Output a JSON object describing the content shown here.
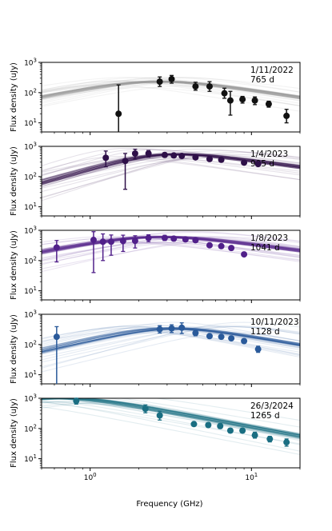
{
  "chart_data": {
    "type": "scatter",
    "xlabel": "Frequency (GHz)",
    "ylabel": "Flux density (uJy)",
    "x_scale": "log",
    "y_scale": "log",
    "xlim": [
      0.5,
      20
    ],
    "ylim": [
      5,
      1000
    ],
    "x_ticks": [
      {
        "value": 1,
        "base": "10",
        "exp": "0"
      },
      {
        "value": 10,
        "base": "10",
        "exp": "1"
      }
    ],
    "y_ticks": [
      {
        "value": 10,
        "base": "10",
        "exp": "1"
      },
      {
        "value": 100,
        "base": "10",
        "exp": "2"
      },
      {
        "value": 1000,
        "base": "10",
        "exp": "3"
      }
    ],
    "panels": [
      {
        "date": "1/11/2022",
        "age": "765 d",
        "color": "#111111",
        "model": {
          "peak_x": 2.5,
          "peak_y": 230,
          "alpha_thick": 1.0,
          "alpha_thin": -0.8
        },
        "points": [
          {
            "x": 1.5,
            "y": 20,
            "lo": 0.0,
            "hi": 180
          },
          {
            "x": 2.7,
            "y": 230,
            "lo": 160,
            "hi": 330
          },
          {
            "x": 3.2,
            "y": 280,
            "lo": 205,
            "hi": 370
          },
          {
            "x": 4.5,
            "y": 160,
            "lo": 120,
            "hi": 220
          },
          {
            "x": 5.5,
            "y": 160,
            "lo": 110,
            "hi": 230
          },
          {
            "x": 6.8,
            "y": 95,
            "lo": 65,
            "hi": 140
          },
          {
            "x": 7.4,
            "y": 55,
            "lo": 18,
            "hi": 110
          },
          {
            "x": 8.8,
            "y": 60,
            "lo": 45,
            "hi": 75
          },
          {
            "x": 10.5,
            "y": 55,
            "lo": 40,
            "hi": 72
          },
          {
            "x": 12.8,
            "y": 42,
            "lo": 33,
            "hi": 52
          },
          {
            "x": 16.5,
            "y": 17,
            "lo": 10,
            "hi": 28
          }
        ]
      },
      {
        "date": "1/4/2023",
        "age": "905 d",
        "color": "#2e0f48",
        "model": {
          "peak_x": 2.8,
          "peak_y": 520,
          "alpha_thick": 1.5,
          "alpha_thin": -0.7
        },
        "points": [
          {
            "x": 1.25,
            "y": 420,
            "lo": 210,
            "hi": 700
          },
          {
            "x": 1.65,
            "y": 330,
            "lo": 38,
            "hi": 580
          },
          {
            "x": 1.9,
            "y": 580,
            "lo": 380,
            "hi": 800
          },
          {
            "x": 2.3,
            "y": 580,
            "lo": 440,
            "hi": 730
          },
          {
            "x": 2.9,
            "y": 520,
            "lo": 440,
            "hi": 610
          },
          {
            "x": 3.3,
            "y": 500,
            "lo": 430,
            "hi": 580
          },
          {
            "x": 3.7,
            "y": 480,
            "lo": 420,
            "hi": 550
          },
          {
            "x": 4.5,
            "y": 430,
            "lo": 400,
            "hi": 470
          },
          {
            "x": 5.5,
            "y": 380,
            "lo": 350,
            "hi": 410
          },
          {
            "x": 6.5,
            "y": 360,
            "lo": 330,
            "hi": 390
          },
          {
            "x": 9.0,
            "y": 290,
            "lo": 270,
            "hi": 310
          },
          {
            "x": 11.0,
            "y": 260,
            "lo": 240,
            "hi": 280
          }
        ]
      },
      {
        "date": "1/8/2023",
        "age": "1041 d",
        "color": "#51208a",
        "model": {
          "peak_x": 2.4,
          "peak_y": 600,
          "alpha_thick": 1.0,
          "alpha_thin": -0.7
        },
        "points": [
          {
            "x": 0.62,
            "y": 270,
            "lo": 90,
            "hi": 460
          },
          {
            "x": 1.05,
            "y": 480,
            "lo": 40,
            "hi": 900
          },
          {
            "x": 1.2,
            "y": 420,
            "lo": 100,
            "hi": 760
          },
          {
            "x": 1.35,
            "y": 420,
            "lo": 150,
            "hi": 700
          },
          {
            "x": 1.6,
            "y": 440,
            "lo": 200,
            "hi": 690
          },
          {
            "x": 1.9,
            "y": 450,
            "lo": 260,
            "hi": 660
          },
          {
            "x": 2.3,
            "y": 560,
            "lo": 420,
            "hi": 710
          },
          {
            "x": 2.9,
            "y": 560,
            "lo": 460,
            "hi": 680
          },
          {
            "x": 3.3,
            "y": 530,
            "lo": 450,
            "hi": 620
          },
          {
            "x": 3.9,
            "y": 500,
            "lo": 440,
            "hi": 570
          },
          {
            "x": 4.5,
            "y": 470,
            "lo": 430,
            "hi": 515
          },
          {
            "x": 5.5,
            "y": 320,
            "lo": 295,
            "hi": 350
          },
          {
            "x": 6.5,
            "y": 300,
            "lo": 275,
            "hi": 325
          },
          {
            "x": 7.5,
            "y": 260,
            "lo": 240,
            "hi": 285
          },
          {
            "x": 9.0,
            "y": 160,
            "lo": 145,
            "hi": 175
          }
        ]
      },
      {
        "date": "10/11/2023",
        "age": "1128 d",
        "color": "#2a5a9a",
        "model": {
          "peak_x": 3.0,
          "peak_y": 340,
          "alpha_thick": 1.2,
          "alpha_thin": -0.9
        },
        "points": [
          {
            "x": 0.62,
            "y": 180,
            "lo": 0.0,
            "hi": 390
          },
          {
            "x": 2.7,
            "y": 320,
            "lo": 240,
            "hi": 420
          },
          {
            "x": 3.2,
            "y": 340,
            "lo": 250,
            "hi": 450
          },
          {
            "x": 3.7,
            "y": 360,
            "lo": 230,
            "hi": 520
          },
          {
            "x": 4.5,
            "y": 240,
            "lo": 195,
            "hi": 290
          },
          {
            "x": 5.5,
            "y": 190,
            "lo": 170,
            "hi": 215
          },
          {
            "x": 6.5,
            "y": 180,
            "lo": 160,
            "hi": 200
          },
          {
            "x": 7.5,
            "y": 160,
            "lo": 145,
            "hi": 180
          },
          {
            "x": 9.0,
            "y": 130,
            "lo": 115,
            "hi": 145
          },
          {
            "x": 11.0,
            "y": 70,
            "lo": 55,
            "hi": 88
          }
        ]
      },
      {
        "date": "26/3/2024",
        "age": "1265 d",
        "color": "#1a6e82",
        "model": {
          "peak_x": 0.7,
          "peak_y": 1000,
          "alpha_thick": 0.8,
          "alpha_thin": -1.0
        },
        "points": [
          {
            "x": 0.82,
            "y": 820,
            "lo": 640,
            "hi": 1000
          },
          {
            "x": 2.2,
            "y": 450,
            "lo": 330,
            "hi": 600
          },
          {
            "x": 2.7,
            "y": 270,
            "lo": 190,
            "hi": 370
          },
          {
            "x": 4.4,
            "y": 140,
            "lo": 120,
            "hi": 165
          },
          {
            "x": 5.4,
            "y": 130,
            "lo": 110,
            "hi": 155
          },
          {
            "x": 6.4,
            "y": 120,
            "lo": 100,
            "hi": 145
          },
          {
            "x": 7.4,
            "y": 85,
            "lo": 72,
            "hi": 100
          },
          {
            "x": 8.8,
            "y": 85,
            "lo": 72,
            "hi": 100
          },
          {
            "x": 10.5,
            "y": 60,
            "lo": 48,
            "hi": 75
          },
          {
            "x": 13.0,
            "y": 45,
            "lo": 36,
            "hi": 55
          },
          {
            "x": 16.5,
            "y": 35,
            "lo": 26,
            "hi": 45
          }
        ]
      }
    ]
  }
}
